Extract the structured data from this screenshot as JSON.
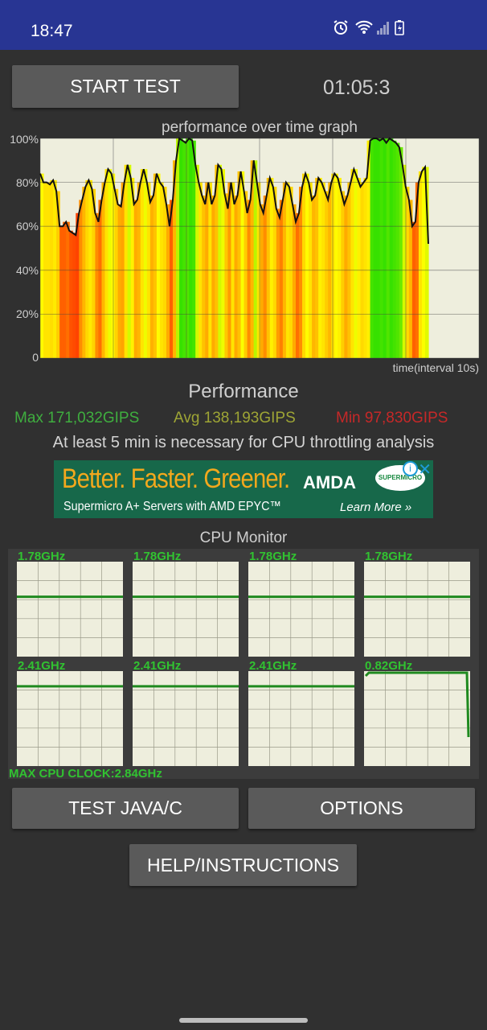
{
  "status_bar": {
    "time": "18:47"
  },
  "controls": {
    "start_label": "START TEST",
    "timer": "01:05:3"
  },
  "graph": {
    "title": "performance over time graph",
    "y_ticks": [
      "100%",
      "80%",
      "60%",
      "40%",
      "20%",
      "0"
    ],
    "x_label": "time(interval 10s)"
  },
  "performance": {
    "title": "Performance",
    "max": "Max 171,032GIPS",
    "avg": "Avg 138,193GIPS",
    "min": "Min 97,830GIPS",
    "note": "At least 5 min is necessary for CPU throttling analysis"
  },
  "ad": {
    "headline": "Better. Faster. Greener.",
    "subline": "Supermicro A+ Servers with AMD EPYC™",
    "amd": "AMDA",
    "badge": "SUPERMICRO",
    "cta": "Learn More »"
  },
  "cpu_monitor": {
    "title": "CPU Monitor",
    "cores": [
      {
        "freq": "1.78GHz",
        "level": 0.37
      },
      {
        "freq": "1.78GHz",
        "level": 0.37
      },
      {
        "freq": "1.78GHz",
        "level": 0.37
      },
      {
        "freq": "1.78GHz",
        "level": 0.37
      },
      {
        "freq": "2.41GHz",
        "level": 0.16
      },
      {
        "freq": "2.41GHz",
        "level": 0.16
      },
      {
        "freq": "2.41GHz",
        "level": 0.16
      },
      {
        "freq": "0.82GHz",
        "level": 0.0
      }
    ],
    "max_clock": "MAX CPU CLOCK:2.84GHz"
  },
  "buttons": {
    "test_java_c": "TEST JAVA/C",
    "options": "OPTIONS",
    "help": "HELP/INSTRUCTIONS"
  },
  "colors": {
    "status_bar": "#283593",
    "background": "#303030",
    "button": "#5a5a5a",
    "graph_bg": "#eeeedd",
    "freq_text": "#31c231",
    "max": "#3fae3f",
    "avg": "#9ea535",
    "min": "#c62828"
  },
  "performance_series": [
    84,
    80,
    80,
    79,
    81,
    76,
    60,
    60,
    62,
    58,
    57,
    56,
    66,
    72,
    78,
    81,
    77,
    66,
    62,
    72,
    80,
    86,
    84,
    77,
    70,
    69,
    80,
    88,
    82,
    70,
    72,
    80,
    86,
    80,
    71,
    74,
    84,
    80,
    78,
    70,
    60,
    72,
    90,
    100,
    99,
    98,
    100,
    99,
    88,
    80,
    74,
    70,
    80,
    70,
    74,
    88,
    86,
    75,
    68,
    80,
    70,
    74,
    85,
    76,
    66,
    72,
    90,
    80,
    70,
    66,
    74,
    82,
    78,
    68,
    64,
    72,
    80,
    78,
    70,
    62,
    66,
    78,
    84,
    80,
    72,
    74,
    82,
    80,
    76,
    72,
    80,
    84,
    82,
    76,
    70,
    74,
    80,
    86,
    82,
    78,
    80,
    82,
    99,
    100,
    100,
    99,
    100,
    98,
    100,
    99,
    98,
    96,
    88,
    78,
    72,
    60,
    62,
    80,
    85,
    87,
    52
  ]
}
